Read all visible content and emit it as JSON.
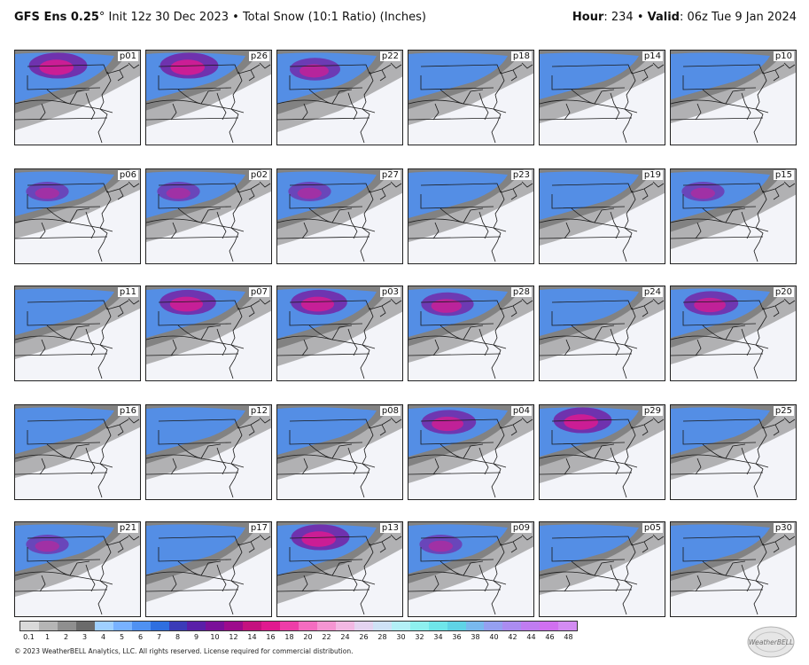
{
  "header": {
    "model": "GFS Ens 0.25",
    "degree": "°",
    "init": " Init 12z 30 Dec 2023",
    "bullet": " • ",
    "product": "Total Snow (10:1 Ratio) (Inches)",
    "hour_label": "Hour",
    "hour_value": ": 234",
    "valid_label": "Valid",
    "valid_value": ": 06z Tue 9 Jan 2024"
  },
  "panels": [
    {
      "label": "p01",
      "intensity": 0.95,
      "coverage": 0.75
    },
    {
      "label": "p06",
      "intensity": 0.55,
      "coverage": 0.45
    },
    {
      "label": "p11",
      "intensity": 0.35,
      "coverage": 0.55
    },
    {
      "label": "p16",
      "intensity": 0.35,
      "coverage": 0.55
    },
    {
      "label": "p21",
      "intensity": 0.55,
      "coverage": 0.6
    },
    {
      "label": "p26",
      "intensity": 0.95,
      "coverage": 0.65
    },
    {
      "label": "p02",
      "intensity": 0.55,
      "coverage": 0.55
    },
    {
      "label": "p07",
      "intensity": 0.9,
      "coverage": 0.7
    },
    {
      "label": "p12",
      "intensity": 0.35,
      "coverage": 0.6
    },
    {
      "label": "p17",
      "intensity": 0.3,
      "coverage": 0.75
    },
    {
      "label": "p22",
      "intensity": 0.75,
      "coverage": 0.8
    },
    {
      "label": "p27",
      "intensity": 0.55,
      "coverage": 0.65
    },
    {
      "label": "p03",
      "intensity": 0.9,
      "coverage": 0.75
    },
    {
      "label": "p08",
      "intensity": 0.5,
      "coverage": 0.6
    },
    {
      "label": "p13",
      "intensity": 0.95,
      "coverage": 0.8
    },
    {
      "label": "p18",
      "intensity": 0.45,
      "coverage": 0.6
    },
    {
      "label": "p23",
      "intensity": 0.3,
      "coverage": 0.55
    },
    {
      "label": "p28",
      "intensity": 0.8,
      "coverage": 0.65
    },
    {
      "label": "p04",
      "intensity": 0.85,
      "coverage": 0.7
    },
    {
      "label": "p09",
      "intensity": 0.55,
      "coverage": 0.7
    },
    {
      "label": "p14",
      "intensity": 0.3,
      "coverage": 0.55
    },
    {
      "label": "p19",
      "intensity": 0.45,
      "coverage": 0.65
    },
    {
      "label": "p24",
      "intensity": 0.35,
      "coverage": 0.6
    },
    {
      "label": "p29",
      "intensity": 0.95,
      "coverage": 0.7
    },
    {
      "label": "p05",
      "intensity": 0.3,
      "coverage": 0.55
    },
    {
      "label": "p10",
      "intensity": 0.3,
      "coverage": 0.55
    },
    {
      "label": "p15",
      "intensity": 0.55,
      "coverage": 0.75
    },
    {
      "label": "p20",
      "intensity": 0.85,
      "coverage": 0.7
    },
    {
      "label": "p25",
      "intensity": 0.3,
      "coverage": 0.6
    },
    {
      "label": "p30",
      "intensity": 0.35,
      "coverage": 0.6
    }
  ],
  "colorbar": {
    "ticks": [
      "0.1",
      "1",
      "2",
      "3",
      "4",
      "5",
      "6",
      "7",
      "8",
      "9",
      "10",
      "12",
      "14",
      "16",
      "18",
      "20",
      "22",
      "24",
      "26",
      "28",
      "30",
      "32",
      "34",
      "36",
      "38",
      "40",
      "42",
      "44",
      "46",
      "48"
    ],
    "colors": [
      "#d9d9d9",
      "#b5b5b5",
      "#8f8f8f",
      "#6b6b6b",
      "#9fd0ff",
      "#78b2ff",
      "#4f91f2",
      "#2f6fe0",
      "#3b3bb8",
      "#5a1fa8",
      "#7a1099",
      "#9d0b8c",
      "#c4127f",
      "#e0198f",
      "#ee3da8",
      "#f46cc0",
      "#f595d2",
      "#f2b8e3",
      "#e4d3f0",
      "#cfe2f6",
      "#b3f0f6",
      "#8ef0ef",
      "#6fe6ea",
      "#5fd3e6",
      "#79b9ee",
      "#95a0f0",
      "#ab8cf0",
      "#c07cf0",
      "#d070f0",
      "#d38cf2"
    ]
  },
  "footer": {
    "text": "© 2023 WeatherBELL Analytics, LLC. All rights reserved. License required for commercial distribution."
  },
  "logo": {
    "text": "WeatherBELL"
  }
}
